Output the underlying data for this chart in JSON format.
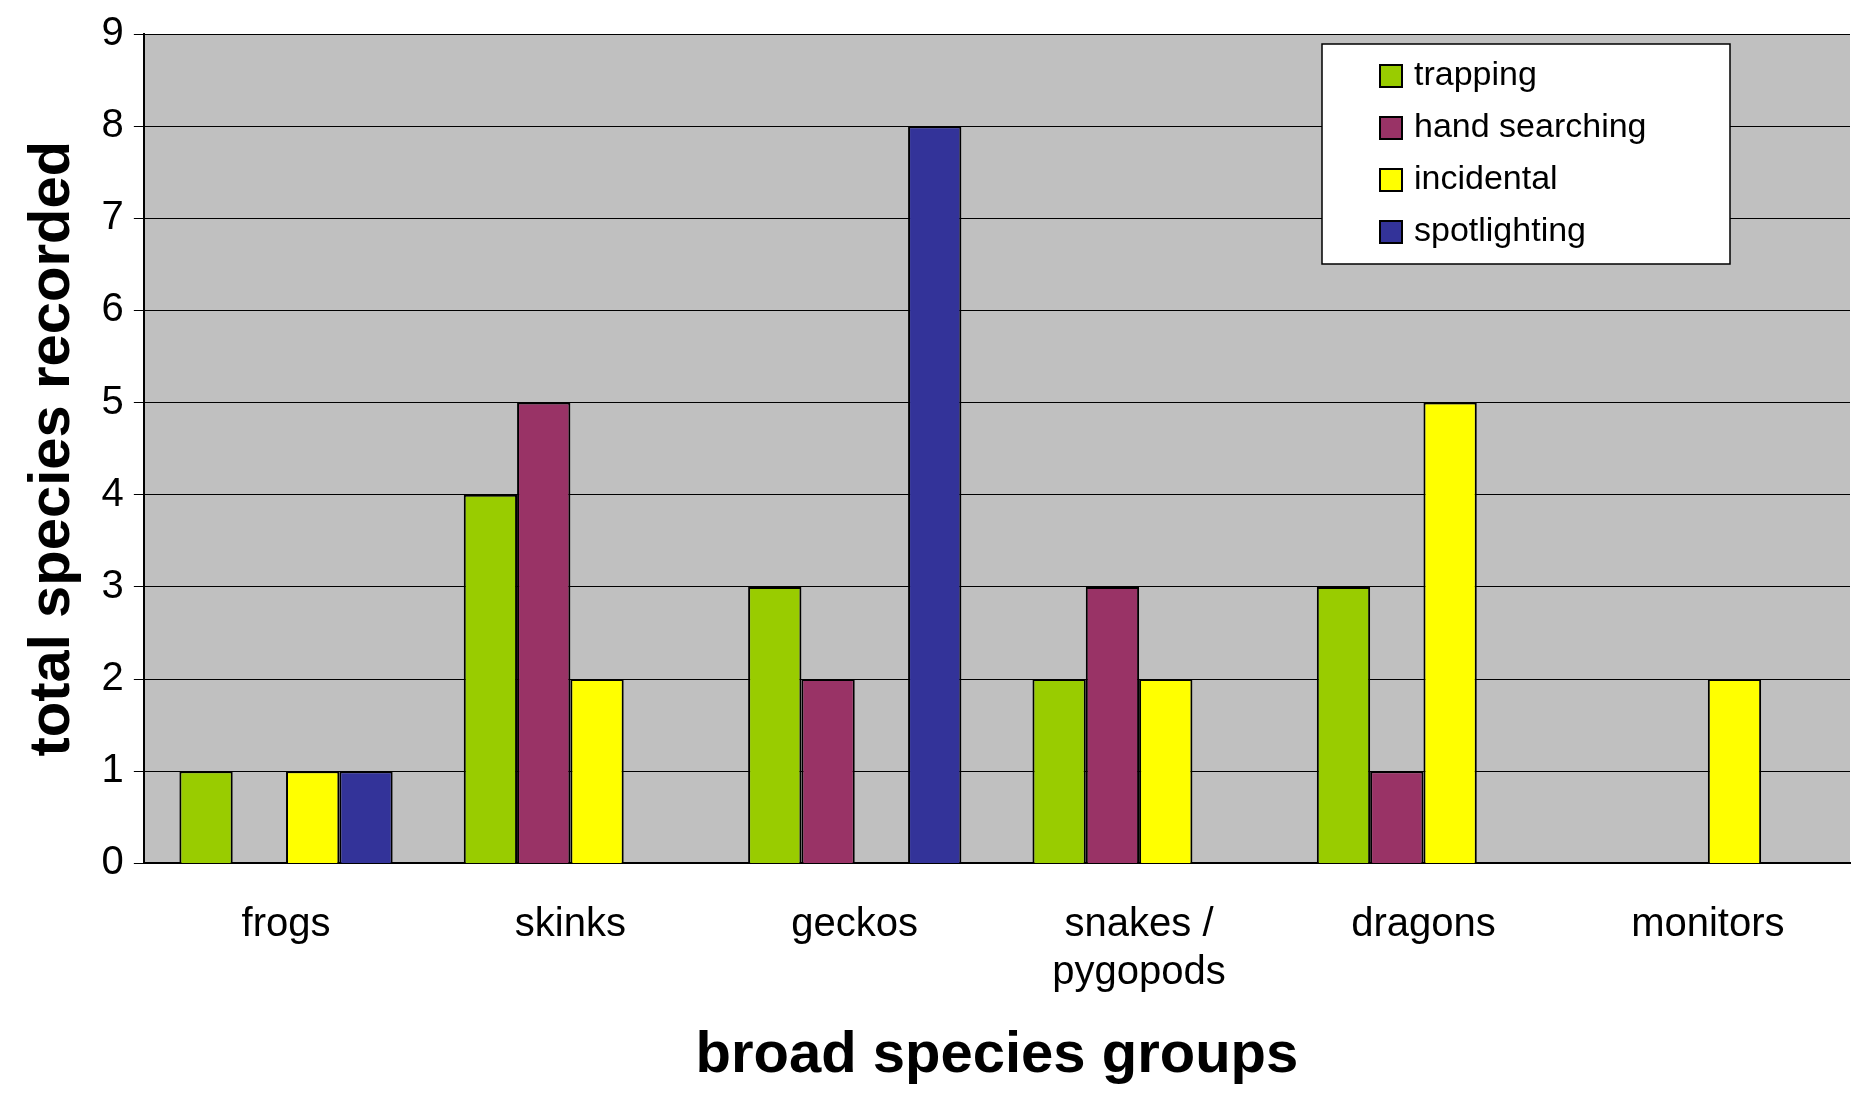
{
  "chart_data": {
    "type": "bar",
    "xlabel": "broad species groups",
    "ylabel": "total species recorded",
    "categories": [
      "frogs",
      "skinks",
      "geckos",
      "snakes / pygopods",
      "dragons",
      "monitors"
    ],
    "series": [
      {
        "name": "trapping",
        "color": "#99cc00",
        "values": [
          1,
          4,
          3,
          2,
          3,
          0
        ]
      },
      {
        "name": "hand searching",
        "color": "#993366",
        "values": [
          0,
          5,
          2,
          3,
          1,
          0
        ]
      },
      {
        "name": "incidental",
        "color": "#ffff00",
        "values": [
          1,
          2,
          0,
          2,
          5,
          2
        ]
      },
      {
        "name": "spotlighting",
        "color": "#333399",
        "values": [
          1,
          0,
          8,
          0,
          0,
          0
        ]
      }
    ],
    "ylim": [
      0,
      9
    ],
    "yticks": [
      0,
      1,
      2,
      3,
      4,
      5,
      6,
      7,
      8,
      9
    ],
    "grid": "y",
    "legend": "top right"
  }
}
